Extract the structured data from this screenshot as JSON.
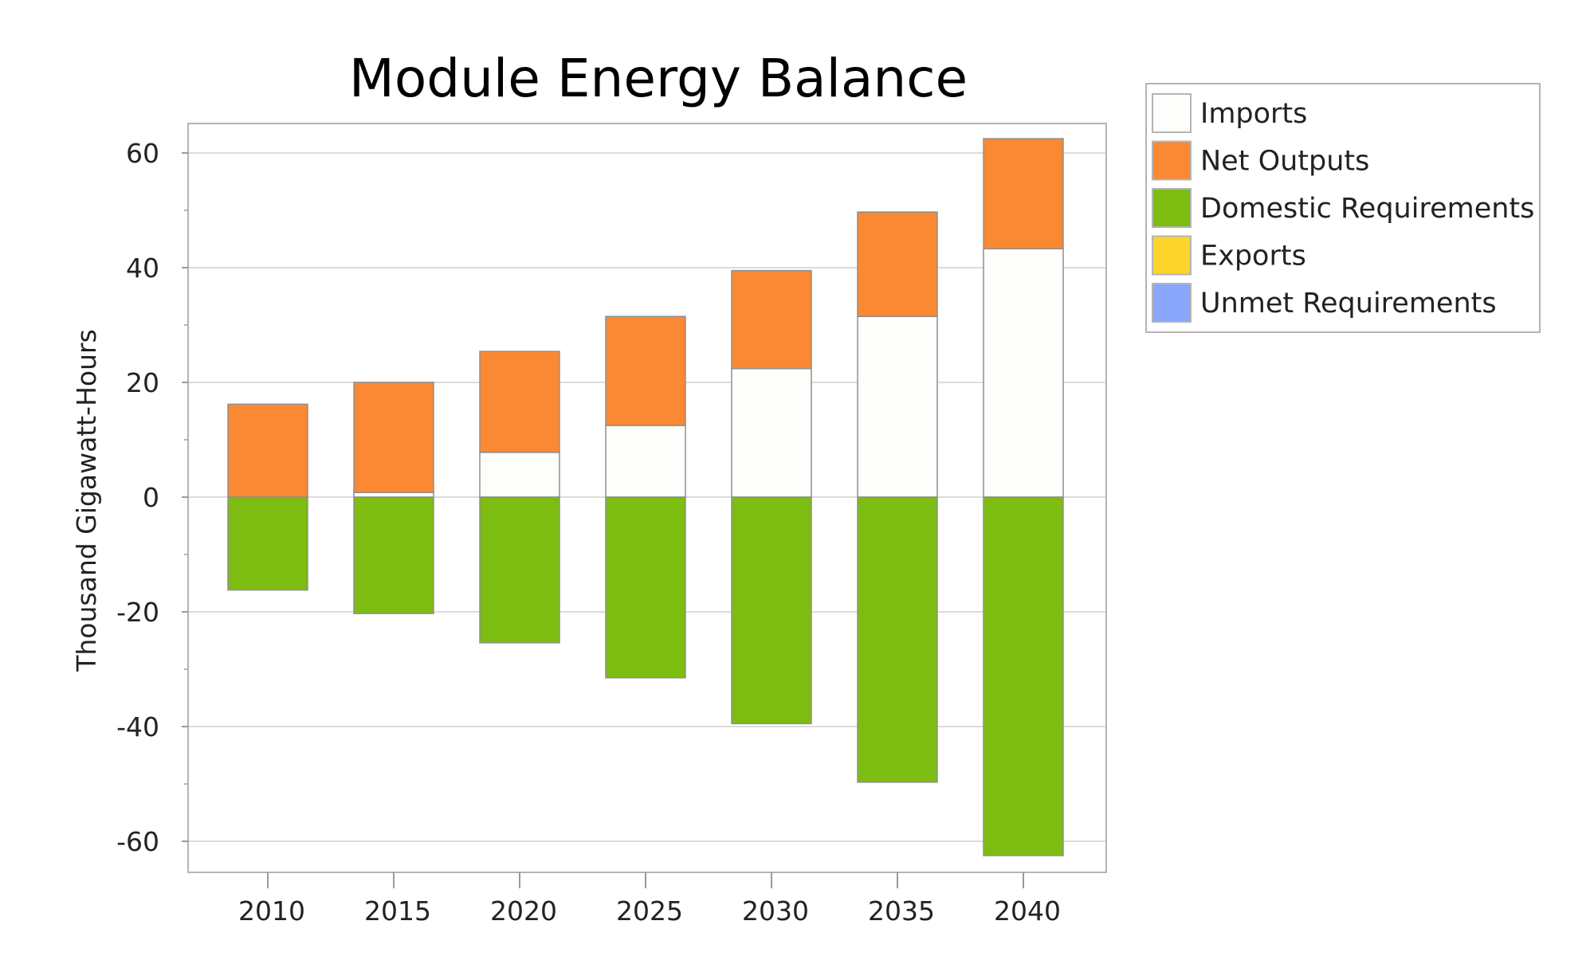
{
  "chart_data": {
    "type": "bar",
    "stacked": true,
    "title": "Module Energy Balance",
    "xlabel": "",
    "ylabel": "Thousand Gigawatt-Hours",
    "categories": [
      "2010",
      "2015",
      "2020",
      "2025",
      "2030",
      "2035",
      "2040"
    ],
    "ylim": [
      -66,
      66
    ],
    "yticks": [
      60,
      40,
      20,
      0,
      -20,
      -40,
      -60
    ],
    "grid": true,
    "legend_position": "right",
    "series": [
      {
        "name": "Imports",
        "color": "#fdfdfb",
        "values": [
          0,
          0.8,
          7.8,
          12.5,
          22.4,
          31.5,
          43.3
        ]
      },
      {
        "name": "Net Outputs",
        "color": "#fb8832",
        "values": [
          16.2,
          19.2,
          17.6,
          19.0,
          17.1,
          18.2,
          19.2
        ]
      },
      {
        "name": "Domestic Requirements",
        "color": "#7dbc10",
        "values": [
          -16.2,
          -20.3,
          -25.4,
          -31.5,
          -39.5,
          -49.7,
          -62.5
        ]
      },
      {
        "name": "Exports",
        "color": "#fdd42a",
        "values": [
          0,
          0,
          0,
          0,
          0,
          0,
          0
        ]
      },
      {
        "name": "Unmet Requirements",
        "color": "#8aa6fd",
        "values": [
          0,
          0,
          0,
          0,
          0,
          0,
          0
        ]
      }
    ]
  }
}
